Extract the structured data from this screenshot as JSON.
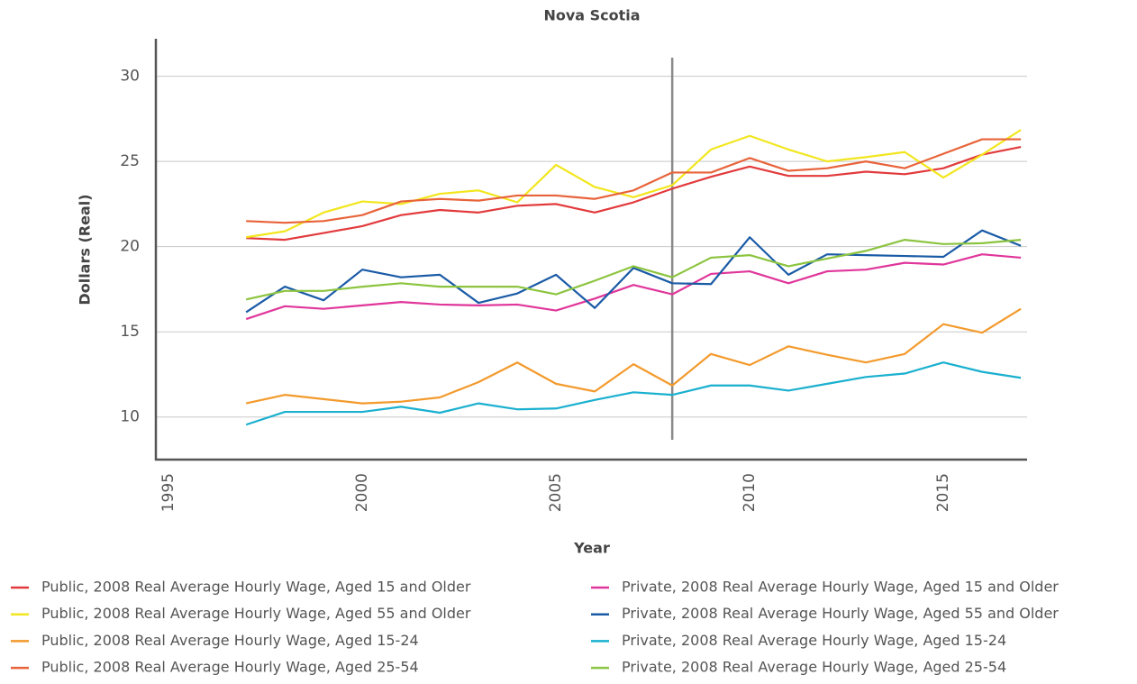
{
  "chart_data": {
    "type": "line",
    "title": "Nova Scotia",
    "x_label": "Year",
    "y_label": "Dollars (Real)",
    "x": [
      1997,
      1998,
      1999,
      2000,
      2001,
      2002,
      2003,
      2004,
      2005,
      2006,
      2007,
      2008,
      2009,
      2010,
      2011,
      2012,
      2013,
      2014,
      2015,
      2016,
      2017
    ],
    "series": [
      {
        "name": "Public, 2008 Real Average Hourly Wage, Aged 15 and Older",
        "color": "#e23a3c",
        "values": [
          20.5,
          20.4,
          20.8,
          21.2,
          21.85,
          22.15,
          22.0,
          22.4,
          22.5,
          22.0,
          22.6,
          23.4,
          24.1,
          24.7,
          24.15,
          24.15,
          24.4,
          24.25,
          24.6,
          25.4,
          25.85
        ]
      },
      {
        "name": "Public, 2008 Real Average Hourly Wage, Aged 55 and Older",
        "color": "#f2e61e",
        "values": [
          20.55,
          20.9,
          22.0,
          22.65,
          22.5,
          23.1,
          23.3,
          22.6,
          24.8,
          23.5,
          22.9,
          23.6,
          25.7,
          26.5,
          25.7,
          25.0,
          25.25,
          25.55,
          24.05,
          25.4,
          26.85
        ]
      },
      {
        "name": "Public, 2008 Real Average Hourly Wage, Aged 15-24",
        "color": "#f39a2c",
        "values": [
          10.8,
          11.3,
          11.05,
          10.8,
          10.9,
          11.15,
          12.05,
          13.2,
          11.95,
          11.5,
          13.1,
          11.85,
          13.7,
          13.05,
          14.15,
          13.65,
          13.2,
          13.7,
          15.45,
          14.95,
          16.35
        ]
      },
      {
        "name": "Public, 2008 Real Average Hourly Wage, Aged 25-54",
        "color": "#e8633a",
        "values": [
          21.5,
          21.4,
          21.5,
          21.85,
          22.65,
          22.8,
          22.7,
          23.0,
          23.0,
          22.8,
          23.3,
          24.35,
          24.35,
          25.2,
          24.45,
          24.6,
          25.0,
          24.6,
          25.45,
          26.3,
          26.3
        ]
      },
      {
        "name": "Private, 2008 Real Average Hourly Wage, Aged 15 and Older",
        "color": "#e0369b",
        "values": [
          15.75,
          16.5,
          16.35,
          16.55,
          16.75,
          16.6,
          16.55,
          16.6,
          16.25,
          16.95,
          17.75,
          17.2,
          18.4,
          18.55,
          17.85,
          18.55,
          18.65,
          19.05,
          18.95,
          19.55,
          19.35
        ]
      },
      {
        "name": "Private, 2008 Real Average Hourly Wage, Aged 55 and Older",
        "color": "#1a5ba6",
        "values": [
          16.15,
          17.65,
          16.85,
          18.65,
          18.2,
          18.35,
          16.7,
          17.25,
          18.35,
          16.4,
          18.75,
          17.85,
          17.8,
          20.55,
          18.35,
          19.55,
          19.5,
          19.45,
          19.4,
          20.95,
          20.05
        ]
      },
      {
        "name": "Private, 2008 Real Average Hourly Wage, Aged 15-24",
        "color": "#1ab0cf",
        "values": [
          9.55,
          10.3,
          10.3,
          10.3,
          10.6,
          10.25,
          10.8,
          10.45,
          10.5,
          11.0,
          11.45,
          11.3,
          11.85,
          11.85,
          11.55,
          11.95,
          12.35,
          12.55,
          13.2,
          12.65,
          12.3
        ]
      },
      {
        "name": "Private, 2008 Real Average Hourly Wage, Aged 25-54",
        "color": "#8cc43f",
        "values": [
          16.9,
          17.4,
          17.4,
          17.65,
          17.85,
          17.65,
          17.65,
          17.65,
          17.2,
          18.0,
          18.85,
          18.2,
          19.35,
          19.5,
          18.85,
          19.3,
          19.75,
          20.4,
          20.15,
          20.2,
          20.4
        ]
      }
    ],
    "xlim": [
      1994.67,
      2017.16
    ],
    "xticks": [
      1995,
      2000,
      2005,
      2010,
      2015
    ],
    "ylim": [
      7.5,
      32.2
    ],
    "yticks": [
      10,
      15,
      20,
      25,
      30
    ],
    "grid": true,
    "vline": 2008
  }
}
